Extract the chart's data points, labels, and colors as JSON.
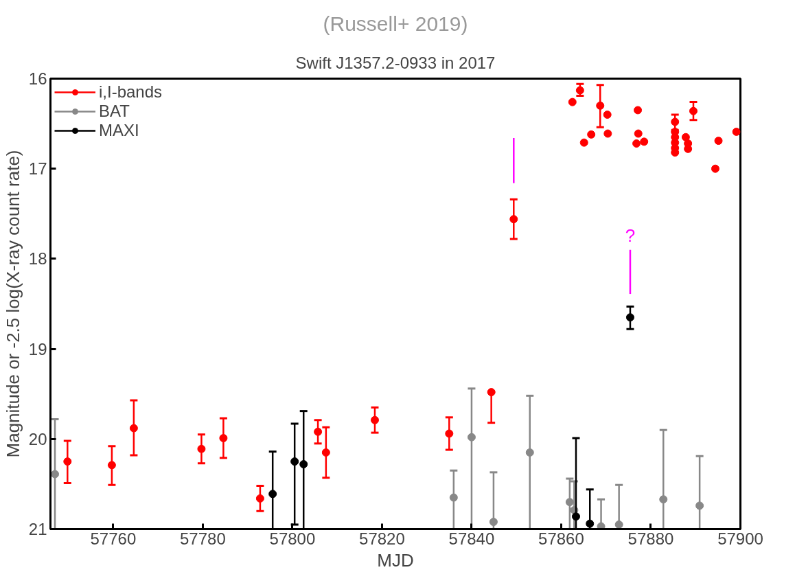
{
  "chart_data": {
    "type": "scatter",
    "title": "Swift J1357.2-0933 in 2017",
    "xlabel": "MJD",
    "ylabel": "Magnitude or -2.5 log(X-ray count rate)",
    "annotations": [
      "(Russell+ 2019)",
      {
        "text": "?",
        "x": 57875.4,
        "y": 17.9
      }
    ],
    "xlim": [
      57746,
      57900
    ],
    "xticks": [
      57760,
      57780,
      57800,
      57820,
      57840,
      57860,
      57880,
      57900
    ],
    "ylim": [
      21,
      16
    ],
    "yticks": [
      16,
      17,
      18,
      19,
      20,
      21
    ],
    "grid": false,
    "legend": "top left",
    "marker": "circle",
    "series": [
      {
        "name": "i,I-bands",
        "color": "#ff0000",
        "x": [
          57749.8,
          57759.7,
          57764.6,
          57779.7,
          57784.6,
          57792.8,
          57805.7,
          57807.5,
          57818.4,
          57835.0,
          57844.4,
          57849.4,
          57864.2,
          57862.5,
          57868.7,
          57870.3,
          57870.4,
          57866.7,
          57865.1,
          57877.1,
          57877.2,
          57876.8,
          57878.5,
          57885.4,
          57885.4,
          57885.4,
          57885.4,
          57885.4,
          57885.4,
          57887.8,
          57888.3,
          57888.3,
          57889.5,
          57895.1,
          57894.4,
          57899.1
        ],
        "values": [
          20.25,
          20.29,
          19.88,
          20.11,
          19.99,
          20.66,
          19.92,
          20.15,
          19.79,
          19.94,
          19.48,
          17.56,
          16.13,
          16.26,
          16.3,
          16.4,
          16.61,
          16.62,
          16.71,
          16.35,
          16.61,
          16.72,
          16.7,
          16.48,
          16.59,
          16.65,
          16.71,
          16.77,
          16.82,
          16.65,
          16.72,
          16.78,
          16.36,
          16.69,
          17.0,
          16.59
        ],
        "errors": [
          [
            20.02,
            20.49
          ],
          [
            20.08,
            20.51
          ],
          [
            19.57,
            20.18
          ],
          [
            19.95,
            20.27
          ],
          [
            19.77,
            20.21
          ],
          [
            20.52,
            20.8
          ],
          [
            19.79,
            20.05
          ],
          [
            19.87,
            20.43
          ],
          [
            19.65,
            19.93
          ],
          [
            19.76,
            20.12
          ],
          [
            19.48,
            19.82
          ],
          [
            17.34,
            17.78
          ],
          [
            16.06,
            16.19
          ],
          null,
          [
            16.07,
            16.54
          ],
          null,
          null,
          null,
          null,
          null,
          null,
          null,
          null,
          [
            16.4,
            16.57
          ],
          null,
          null,
          null,
          null,
          null,
          null,
          null,
          null,
          [
            16.26,
            16.46
          ],
          null,
          null,
          null
        ]
      },
      {
        "name": "BAT",
        "color": "#888888",
        "x": [
          57747.0,
          57836.0,
          57840.0,
          57844.9,
          57853.0,
          57861.9,
          57862.9,
          57868.9,
          57872.9,
          57882.8,
          57890.9
        ],
        "values": [
          20.39,
          20.65,
          19.98,
          20.92,
          20.15,
          20.7,
          20.79,
          20.97,
          20.95,
          20.67,
          20.74
        ],
        "errors": [
          [
            19.78,
            21
          ],
          [
            20.35,
            21
          ],
          [
            19.44,
            21
          ],
          [
            20.37,
            21
          ],
          [
            19.52,
            21
          ],
          [
            20.44,
            21
          ],
          [
            20.47,
            21
          ],
          [
            20.67,
            21
          ],
          [
            20.51,
            21
          ],
          [
            19.9,
            21
          ],
          [
            20.19,
            21
          ]
        ]
      },
      {
        "name": "MAXI",
        "color": "#000000",
        "x": [
          57795.6,
          57800.5,
          57802.5,
          57863.3,
          57866.4,
          57875.4
        ],
        "values": [
          20.61,
          20.25,
          20.28,
          20.86,
          20.94,
          18.65
        ],
        "errors": [
          [
            20.14,
            21
          ],
          [
            19.83,
            20.95
          ],
          [
            19.69,
            21
          ],
          [
            19.99,
            21
          ],
          [
            20.56,
            21
          ],
          [
            18.53,
            18.78
          ]
        ]
      },
      {
        "type": "line",
        "color": "#ff00ff",
        "x": [
          57849.4,
          57849.4
        ],
        "values": [
          16.66,
          17.16
        ],
        "marker": "none"
      },
      {
        "type": "line",
        "color": "#ff00ff",
        "x": [
          57875.4,
          57875.4
        ],
        "values": [
          17.9,
          18.39
        ],
        "marker": "none"
      }
    ]
  }
}
